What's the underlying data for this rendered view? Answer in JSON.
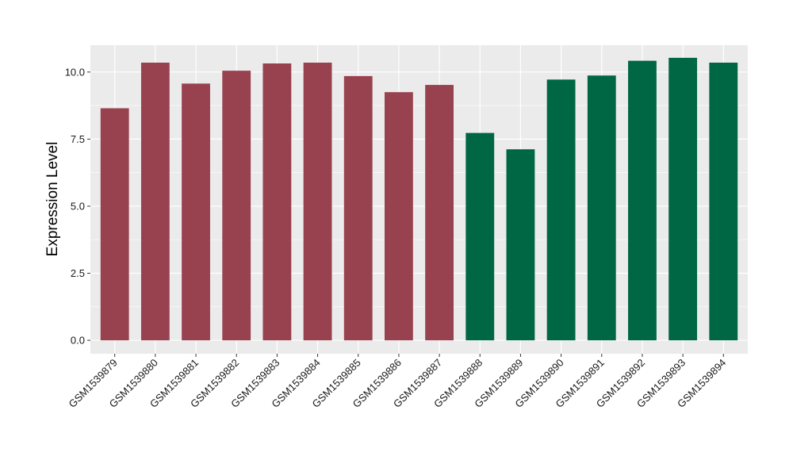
{
  "chart_data": {
    "type": "bar",
    "title": "",
    "xlabel": "",
    "ylabel": "Expression Level",
    "ylim": [
      -0.5,
      11.0
    ],
    "yticks": [
      0.0,
      2.5,
      5.0,
      7.5,
      10.0
    ],
    "ytick_labels": [
      "0.0",
      "2.5",
      "5.0",
      "7.5",
      "10.0"
    ],
    "grid": true,
    "legend": "none",
    "categories": [
      "GSM1539879",
      "GSM1539880",
      "GSM1539881",
      "GSM1539882",
      "GSM1539883",
      "GSM1539884",
      "GSM1539885",
      "GSM1539886",
      "GSM1539887",
      "GSM1539888",
      "GSM1539889",
      "GSM1539890",
      "GSM1539891",
      "GSM1539892",
      "GSM1539893",
      "GSM1539894"
    ],
    "values": [
      8.65,
      10.35,
      9.57,
      10.05,
      10.32,
      10.35,
      9.85,
      9.25,
      9.52,
      7.73,
      7.12,
      9.72,
      9.87,
      10.42,
      10.53,
      10.35
    ],
    "bar_groups": [
      0,
      0,
      0,
      0,
      0,
      0,
      0,
      0,
      0,
      1,
      1,
      1,
      1,
      1,
      1,
      1
    ],
    "group_colors": [
      "#99424F",
      "#006745"
    ],
    "panel_background": "#EBEBEB",
    "gridline_color": "#FFFFFF"
  }
}
